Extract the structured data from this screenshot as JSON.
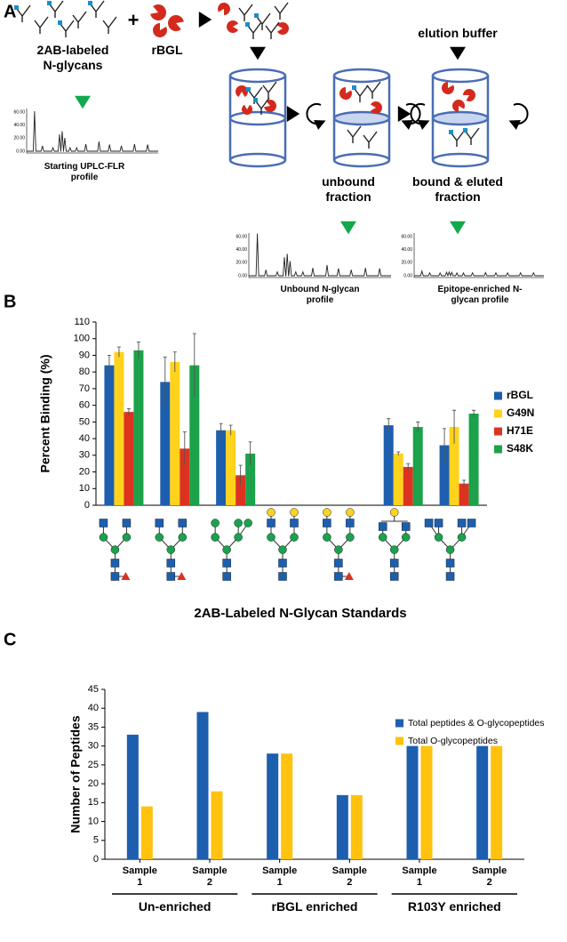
{
  "panel_labels": [
    "A",
    "B",
    "C"
  ],
  "panel_a": {
    "glycans_label": "2AB-labeled N-glycans",
    "plus": "+",
    "lectin_label": "rBGL",
    "elution_label": "elution buffer",
    "starting_profile": "Starting UPLC-FLR profile",
    "unbound_label": "unbound fraction",
    "bound_label": "bound & eluted fraction",
    "unbound_profile": "Unbound N-glycan profile",
    "enriched_profile": "Epitope-enriched N-glycan profile",
    "chromatogram_yticks": [
      "60.00",
      "40.00",
      "20.00",
      "0.00"
    ]
  },
  "chart_data": [
    {
      "type": "bar",
      "ylabel": "Percent Binding (%)",
      "xlabel": "2AB-Labeled N-Glycan Standards",
      "categories": [
        null,
        null,
        null,
        null,
        null,
        null,
        null
      ],
      "series": [
        {
          "name": "rBGL",
          "color": "#1d5fae",
          "values": [
            84,
            74,
            45,
            null,
            null,
            48,
            36
          ],
          "errors": [
            6,
            15,
            4,
            null,
            null,
            4,
            10
          ]
        },
        {
          "name": "G49N",
          "color": "#ffd21c",
          "values": [
            92,
            86,
            45,
            null,
            null,
            31,
            47
          ],
          "errors": [
            3,
            6,
            3,
            null,
            null,
            1,
            10
          ]
        },
        {
          "name": "H71E",
          "color": "#dc3320",
          "values": [
            56,
            34,
            18,
            null,
            null,
            23,
            13
          ],
          "errors": [
            2,
            10,
            6,
            null,
            null,
            2,
            2
          ]
        },
        {
          "name": "S48K",
          "color": "#1ba24a",
          "values": [
            93,
            84,
            31,
            null,
            null,
            47,
            55
          ],
          "errors": [
            5,
            19,
            7,
            null,
            null,
            3,
            2
          ]
        }
      ],
      "ylim": [
        0,
        110
      ],
      "yticks": [
        0,
        10,
        20,
        30,
        40,
        50,
        60,
        70,
        80,
        90,
        100,
        110
      ],
      "legend": "right"
    },
    {
      "type": "bar",
      "ylabel": "Number of Peptides",
      "categories": [
        "Sample 1",
        "Sample 2",
        "Sample 1",
        "Sample 2",
        "Sample 1",
        "Sample 2"
      ],
      "groups": [
        "Un-enriched",
        "rBGL enriched",
        "R103Y enriched"
      ],
      "series": [
        {
          "name": "Total peptides & O-glycopeptides",
          "color": "#1d5fae",
          "values": [
            33,
            39,
            28,
            17,
            30,
            30
          ]
        },
        {
          "name": "Total O-glycopeptides",
          "color": "#ffc20e",
          "values": [
            14,
            18,
            28,
            17,
            30,
            30
          ]
        }
      ],
      "ylim": [
        0,
        45
      ],
      "yticks": [
        0,
        5,
        10,
        15,
        20,
        25,
        30,
        35,
        40,
        45
      ],
      "legend": "upper right"
    }
  ]
}
